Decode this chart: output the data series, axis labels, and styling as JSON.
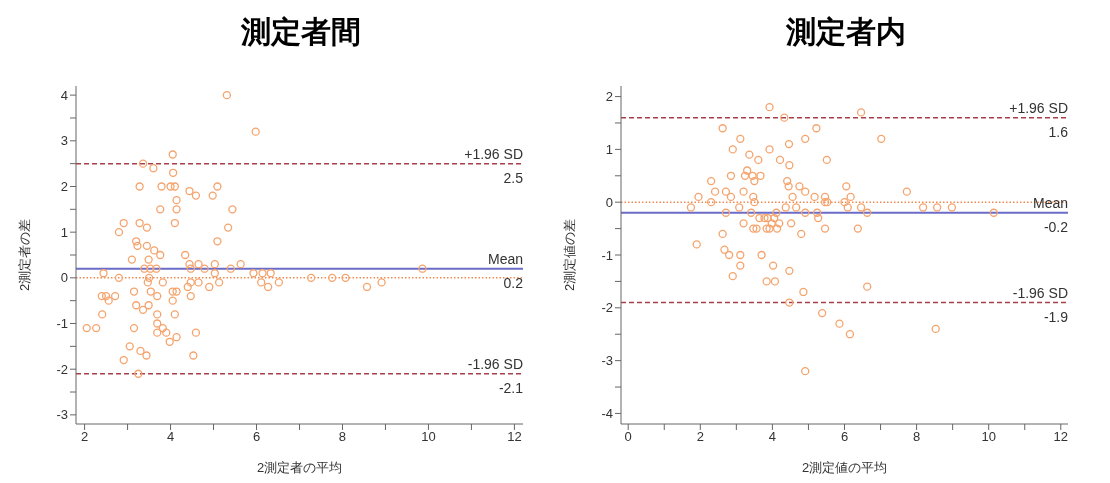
{
  "chart_data": [
    {
      "type": "scatter",
      "title": "測定者間",
      "xlabel": "2測定者の平均",
      "ylabel": "2測定者の差",
      "color": "#f5a36c",
      "marker": "circle",
      "grid": false,
      "x": [
        2.05,
        2.27,
        2.44,
        2.4,
        2.5,
        2.56,
        2.41,
        2.71,
        2.8,
        2.8,
        2.91,
        2.91,
        3.05,
        3.1,
        3.15,
        3.15,
        3.2,
        3.23,
        3.2,
        3.25,
        3.28,
        3.28,
        3.3,
        3.36,
        3.36,
        3.39,
        3.44,
        3.45,
        3.45,
        3.47,
        3.49,
        3.49,
        3.5,
        3.53,
        3.54,
        3.6,
        3.62,
        3.67,
        3.69,
        3.69,
        3.69,
        3.69,
        3.76,
        3.76,
        3.79,
        3.82,
        3.82,
        3.9,
        3.98,
        4.0,
        4.05,
        4.06,
        4.1,
        4.05,
        4.05,
        4.1,
        4.14,
        4.14,
        4.14,
        4.1,
        4.14,
        4.34,
        4.4,
        4.44,
        4.44,
        4.47,
        4.47,
        4.47,
        4.53,
        4.59,
        4.59,
        4.65,
        4.65,
        4.79,
        4.9,
        4.98,
        5.03,
        5.03,
        5.09,
        5.09,
        5.13,
        5.31,
        5.34,
        5.4,
        5.44,
        5.63,
        5.93,
        5.98,
        6.11,
        6.14,
        6.27,
        6.33,
        6.52,
        7.27,
        7.76,
        8.07,
        8.57,
        8.91,
        9.86
      ],
      "values": [
        -1.1,
        -1.1,
        0.1,
        -0.4,
        -0.4,
        -0.5,
        -0.8,
        -0.4,
        0,
        1.0,
        1.2,
        -1.8,
        -1.5,
        0.4,
        -0.3,
        -1.1,
        0.8,
        0.7,
        -0.6,
        -2.1,
        2.0,
        1.2,
        -1.6,
        2.5,
        -0.7,
        0.2,
        -1.7,
        1.1,
        0.7,
        -0.1,
        -0.6,
        0.4,
        0,
        0.2,
        -0.3,
        2.4,
        0.6,
        0.2,
        -0.4,
        -0.8,
        -1.0,
        -1.2,
        0.5,
        1.5,
        2.0,
        -0.1,
        -1.1,
        -1.2,
        -1.4,
        2.0,
        2.7,
        2.3,
        2.0,
        -0.3,
        -0.5,
        1.2,
        1.7,
        1.5,
        -0.3,
        -0.8,
        -1.3,
        0.5,
        -0.2,
        1.9,
        0.3,
        0.2,
        -0.1,
        -0.4,
        -1.7,
        1.8,
        -1.2,
        0.3,
        -0.1,
        0.2,
        -0.2,
        1.8,
        0.3,
        0.1,
        2.0,
        0.8,
        -0.1,
        4.0,
        1.1,
        0.2,
        1.5,
        0.3,
        0.1,
        3.2,
        -0.1,
        0.1,
        -0.2,
        0.1,
        -0.1,
        0,
        0,
        0,
        -0.2,
        -0.1,
        0.2
      ],
      "xlim": [
        1.8,
        12.2
      ],
      "ylim": [
        -3.2,
        4.2
      ],
      "xticks": [
        2,
        {
          "value": 3,
          "label": null
        },
        4,
        {
          "value": 5,
          "label": null
        },
        6,
        {
          "value": 7,
          "label": null
        },
        8,
        {
          "value": 9,
          "label": null
        },
        10,
        {
          "value": 11,
          "label": null
        },
        12
      ],
      "yticks": [
        -3,
        {
          "value": -2.5,
          "label": null
        },
        -2,
        {
          "value": -1.5,
          "label": null
        },
        -1,
        {
          "value": -0.5,
          "label": null
        },
        0,
        {
          "value": 0.5,
          "label": null
        },
        1,
        {
          "value": 1.5,
          "label": null
        },
        2,
        {
          "value": 2.5,
          "label": null
        },
        3,
        {
          "value": 3.5,
          "label": null
        },
        4
      ],
      "ref_lines": [
        {
          "axis": "y",
          "value": 0,
          "color": "#f08a50",
          "line_style": "dotted"
        },
        {
          "axis": "y",
          "value": 2.5,
          "label": "+1.96 SD",
          "color": "#a8404c",
          "line_style": "dashed"
        },
        {
          "axis": "y",
          "value": 0.2,
          "label": "Mean",
          "color": "#6b6bc8",
          "line_style": "solid"
        },
        {
          "axis": "y",
          "value": -2.1,
          "label": "-1.96 SD",
          "color": "#a8404c",
          "line_style": "dashed"
        }
      ],
      "annotations": [
        {
          "text": "2.5",
          "y": 2.5
        },
        {
          "text": "0.2",
          "y": 0.2
        },
        {
          "text": "-2.1",
          "y": -2.1
        }
      ]
    },
    {
      "type": "scatter",
      "title": "測定者内",
      "xlabel": "2測定値の平均",
      "ylabel": "2測定値の差",
      "color": "#f5a36c",
      "marker": "circle",
      "grid": false,
      "x": [
        1.74,
        1.95,
        1.9,
        2.3,
        2.3,
        2.41,
        2.62,
        2.62,
        2.67,
        2.71,
        2.71,
        2.8,
        2.85,
        2.85,
        2.9,
        2.9,
        3.08,
        3.11,
        3.11,
        3.11,
        3.2,
        3.2,
        3.24,
        3.3,
        3.36,
        3.41,
        3.45,
        3.47,
        3.47,
        3.5,
        3.5,
        3.56,
        3.61,
        3.64,
        3.67,
        3.7,
        3.78,
        3.84,
        3.84,
        3.87,
        3.92,
        3.92,
        3.92,
        3.98,
        4.02,
        4.05,
        4.07,
        4.11,
        4.13,
        4.19,
        4.21,
        4.33,
        4.37,
        4.41,
        4.46,
        4.45,
        4.47,
        4.47,
        4.47,
        4.52,
        4.56,
        4.66,
        4.75,
        4.8,
        4.86,
        4.91,
        4.91,
        4.91,
        4.91,
        5.17,
        5.22,
        5.24,
        5.27,
        5.38,
        5.46,
        5.46,
        5.46,
        5.51,
        5.52,
        5.86,
        6.0,
        6.05,
        6.15,
        6.46,
        7.02,
        6.17,
        6.09,
        6.46,
        6.63,
        6.37,
        6.63,
        7.73,
        8.18,
        8.57,
        8.98,
        8.53,
        10.14
      ],
      "values": [
        -0.1,
        0.1,
        -0.8,
        0.4,
        0,
        0.2,
        1.4,
        -0.6,
        -0.9,
        0.2,
        -0.2,
        -1.0,
        0.5,
        0.1,
        1.0,
        -1.4,
        -0.1,
        1.2,
        -1.0,
        -1.2,
        0.2,
        -0.4,
        0.5,
        0.6,
        0.9,
        -0.2,
        0.5,
        0.1,
        -0.5,
        0.4,
        0,
        -0.5,
        0.8,
        -0.3,
        0.5,
        -1.0,
        -0.3,
        -0.5,
        -1.5,
        -0.3,
        1.8,
        1.0,
        -0.5,
        -0.4,
        -1.2,
        -0.3,
        -1.5,
        -0.2,
        -0.5,
        -0.4,
        0.8,
        1.6,
        -0.1,
        0.4,
        1.1,
        0.3,
        0.7,
        -1.3,
        -1.9,
        -0.4,
        0.1,
        -0.1,
        0.3,
        -0.6,
        -1.7,
        1.2,
        0.2,
        -0.2,
        -3.2,
        0.1,
        1.4,
        -0.2,
        -0.3,
        -2.1,
        0.1,
        0,
        -0.5,
        0.8,
        0,
        -2.3,
        0,
        0.3,
        -2.5,
        1.7,
        1.2,
        0.1,
        -0.1,
        -0.1,
        -0.2,
        -0.5,
        -1.6,
        0.2,
        -0.1,
        -0.1,
        -0.1,
        -2.4,
        -0.2
      ],
      "xlim": [
        -0.2,
        12.2
      ],
      "ylim": [
        -4.2,
        2.2
      ],
      "xticks": [
        0,
        {
          "value": 1,
          "label": null
        },
        2,
        {
          "value": 3,
          "label": null
        },
        4,
        {
          "value": 5,
          "label": null
        },
        6,
        {
          "value": 7,
          "label": null
        },
        8,
        {
          "value": 9,
          "label": null
        },
        10,
        {
          "value": 11,
          "label": null
        },
        12
      ],
      "yticks": [
        -4,
        {
          "value": -3.5,
          "label": null
        },
        -3,
        {
          "value": -2.5,
          "label": null
        },
        -2,
        {
          "value": -1.5,
          "label": null
        },
        -1,
        {
          "value": -0.5,
          "label": null
        },
        0,
        {
          "value": 0.5,
          "label": null
        },
        1,
        {
          "value": 1.5,
          "label": null
        },
        2
      ],
      "ref_lines": [
        {
          "axis": "y",
          "value": 0,
          "color": "#f08a50",
          "line_style": "dotted"
        },
        {
          "axis": "y",
          "value": 1.6,
          "label": "+1.96 SD",
          "color": "#a8404c",
          "line_style": "dashed"
        },
        {
          "axis": "y",
          "value": -0.2,
          "label": "Mean",
          "color": "#6b6bc8",
          "line_style": "solid"
        },
        {
          "axis": "y",
          "value": -1.9,
          "label": "-1.96 SD",
          "color": "#a8404c",
          "line_style": "dashed"
        }
      ],
      "annotations": [
        {
          "text": "1.6",
          "y": 1.6
        },
        {
          "text": "-0.2",
          "y": -0.2
        },
        {
          "text": "-1.9",
          "y": -1.9
        }
      ]
    }
  ]
}
